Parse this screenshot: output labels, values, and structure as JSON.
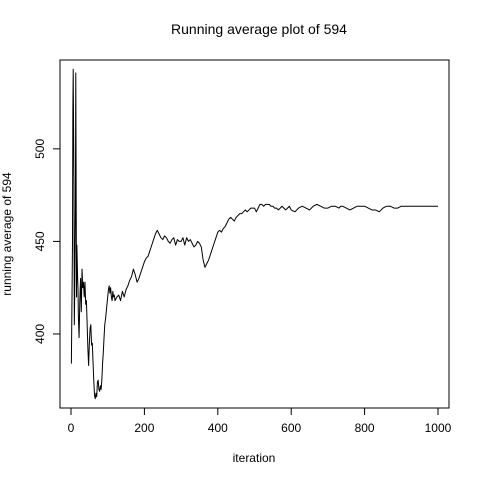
{
  "chart_data": {
    "type": "line",
    "title": "Running average plot of 594",
    "xlabel": "iteration",
    "ylabel": "running average of 594",
    "xlim": [
      -30,
      1030
    ],
    "ylim": [
      360,
      548
    ],
    "x_ticks": [
      0,
      200,
      400,
      600,
      800,
      1000
    ],
    "y_ticks": [
      400,
      450,
      500
    ],
    "grid": false,
    "legend": "none",
    "line_color": "#000000",
    "series": [
      {
        "x": [
          1,
          4,
          5,
          6,
          8,
          9,
          10,
          12,
          13,
          15,
          16,
          18,
          19,
          20,
          22,
          24,
          26,
          28,
          30,
          32,
          34,
          36,
          38,
          40,
          42,
          44,
          46,
          48,
          50,
          52,
          54,
          56,
          58,
          60,
          62,
          64,
          66,
          68,
          70,
          72,
          74,
          76,
          78,
          80,
          82,
          84,
          86,
          88,
          90,
          92,
          94,
          96,
          98,
          100,
          102,
          104,
          106,
          108,
          110,
          112,
          114,
          116,
          118,
          120,
          125,
          130,
          135,
          140,
          145,
          150,
          155,
          160,
          165,
          170,
          175,
          180,
          185,
          190,
          195,
          200,
          205,
          210,
          215,
          220,
          225,
          230,
          235,
          240,
          245,
          250,
          255,
          260,
          265,
          270,
          275,
          280,
          285,
          290,
          295,
          300,
          305,
          310,
          315,
          320,
          325,
          330,
          335,
          340,
          345,
          350,
          355,
          360,
          365,
          370,
          375,
          380,
          385,
          390,
          395,
          400,
          405,
          410,
          415,
          420,
          425,
          430,
          435,
          440,
          445,
          450,
          455,
          460,
          465,
          470,
          475,
          480,
          485,
          490,
          495,
          500,
          505,
          510,
          515,
          520,
          525,
          530,
          535,
          540,
          545,
          550,
          555,
          560,
          565,
          570,
          575,
          580,
          585,
          590,
          595,
          600,
          610,
          620,
          630,
          640,
          650,
          660,
          670,
          680,
          690,
          700,
          710,
          720,
          730,
          735,
          740,
          750,
          760,
          770,
          780,
          790,
          800,
          810,
          820,
          830,
          840,
          850,
          860,
          870,
          880,
          890,
          900,
          910,
          920,
          930,
          940,
          950,
          960,
          970,
          980,
          990,
          1000
        ],
        "y": [
          384,
          448,
          520,
          543,
          480,
          405,
          420,
          470,
          541,
          420,
          448,
          430,
          425,
          410,
          398,
          418,
          430,
          412,
          435,
          425,
          428,
          420,
          428,
          416,
          418,
          405,
          392,
          383,
          395,
          403,
          405,
          394,
          395,
          385,
          375,
          367,
          365,
          368,
          366,
          374,
          375,
          370,
          369,
          372,
          370,
          375,
          384,
          390,
          398,
          405,
          408,
          412,
          416,
          420,
          424,
          426,
          422,
          425,
          420,
          418,
          423,
          420,
          421,
          418,
          420,
          421,
          418,
          423,
          420,
          424,
          426,
          429,
          431,
          435,
          432,
          428,
          430,
          433,
          436,
          439,
          441,
          442,
          445,
          448,
          451,
          454,
          456,
          454,
          452,
          451,
          453,
          452,
          450,
          449,
          451,
          452,
          448,
          451,
          450,
          450,
          452,
          448,
          452,
          450,
          451,
          449,
          447,
          448,
          450,
          449,
          447,
          440,
          436,
          438,
          440,
          443,
          446,
          449,
          452,
          455,
          456,
          455,
          457,
          458,
          460,
          462,
          463,
          462,
          461,
          463,
          464,
          465,
          465,
          466,
          467,
          466,
          467,
          468,
          468,
          468,
          466,
          468,
          470,
          470,
          469,
          470,
          470,
          470,
          469,
          469,
          468,
          468,
          467,
          468,
          469,
          468,
          467,
          468,
          469,
          467,
          466,
          468,
          469,
          468,
          467,
          469,
          470,
          469,
          468,
          468,
          469,
          469,
          468,
          469,
          469,
          468,
          467,
          468,
          469,
          469,
          469,
          468,
          467,
          467,
          466,
          468,
          469,
          469,
          468,
          468,
          469,
          469,
          469,
          469,
          469,
          469,
          469,
          469,
          469,
          469,
          469
        ]
      }
    ]
  }
}
